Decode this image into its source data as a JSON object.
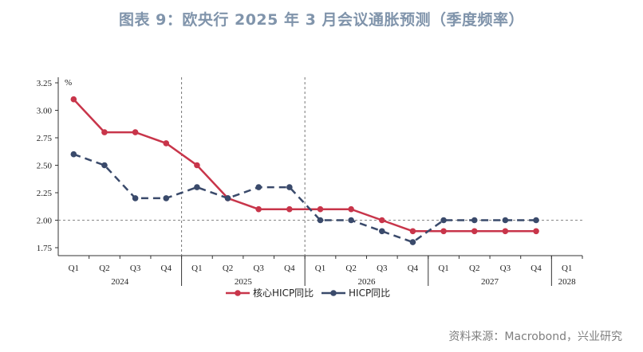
{
  "title": "图表 9：欧央行 2025 年 3 月会议通胀预测（季度频率）",
  "source": "资料来源：Macrobond，兴业研究",
  "chart_data": {
    "type": "line",
    "unit_label": "%",
    "quarters": [
      "Q1",
      "Q2",
      "Q3",
      "Q4",
      "Q1",
      "Q2",
      "Q3",
      "Q4",
      "Q1",
      "Q2",
      "Q3",
      "Q4",
      "Q1",
      "Q2",
      "Q3",
      "Q4",
      "Q1"
    ],
    "years": [
      {
        "label": "2024",
        "quarters": 4
      },
      {
        "label": "2025",
        "quarters": 4
      },
      {
        "label": "2026",
        "quarters": 4
      },
      {
        "label": "2027",
        "quarters": 4
      },
      {
        "label": "2028",
        "quarters": 1
      }
    ],
    "ylim": [
      1.75,
      3.25
    ],
    "yticks": [
      "1.75",
      "2.00",
      "2.25",
      "2.50",
      "2.75",
      "3.00",
      "3.25"
    ],
    "reference_line": 2.0,
    "series": [
      {
        "name": "核心HICP同比",
        "color": "#c8354a",
        "style": "solid",
        "values": [
          3.1,
          2.8,
          2.8,
          2.7,
          2.5,
          2.2,
          2.1,
          2.1,
          2.1,
          2.1,
          2.0,
          1.9,
          1.9,
          1.9,
          1.9,
          1.9,
          null
        ]
      },
      {
        "name": "HICP同比",
        "color": "#3a4a6b",
        "style": "dashed",
        "values": [
          2.6,
          2.5,
          2.2,
          2.2,
          2.3,
          2.2,
          2.3,
          2.3,
          2.0,
          2.0,
          1.9,
          1.8,
          2.0,
          2.0,
          2.0,
          2.0,
          null
        ]
      }
    ],
    "legend_position": "bottom-left"
  }
}
